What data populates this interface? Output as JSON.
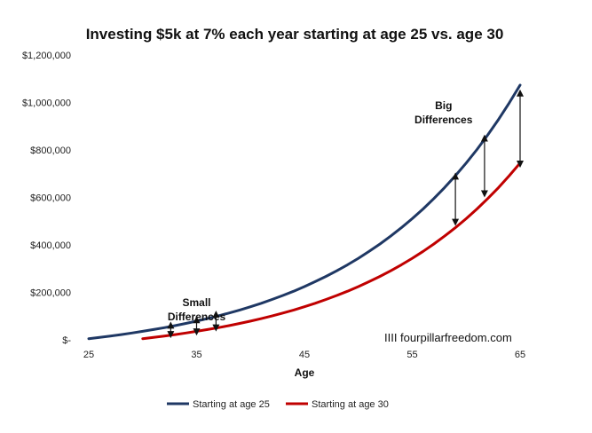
{
  "chart_data": {
    "type": "line",
    "title": "Investing $5k at 7% each year starting at age 25 vs. age 30",
    "xlabel": "Age",
    "ylabel": "",
    "xlim": [
      25,
      65
    ],
    "ylim": [
      0,
      1200000
    ],
    "x_ticks": [
      25,
      35,
      45,
      55,
      65
    ],
    "x_tick_labels": [
      "25",
      "35",
      "45",
      "55",
      "65"
    ],
    "y_ticks": [
      0,
      200000,
      400000,
      600000,
      800000,
      1000000,
      1200000
    ],
    "y_tick_labels": [
      "$-",
      "$200,000",
      "$400,000",
      "$600,000",
      "$800,000",
      "$1,000,000",
      "$1,200,000"
    ],
    "grid": false,
    "legend_position": "bottom",
    "series": [
      {
        "name": "Starting at age 25",
        "color": "#1f3864",
        "x": [
          25,
          26,
          27,
          28,
          29,
          30,
          31,
          32,
          33,
          34,
          35,
          36,
          37,
          38,
          39,
          40,
          41,
          42,
          43,
          44,
          45,
          46,
          47,
          48,
          49,
          50,
          51,
          52,
          53,
          54,
          55,
          56,
          57,
          58,
          59,
          60,
          61,
          62,
          63,
          64,
          65
        ],
        "values": [
          5000,
          10350,
          16075,
          22200,
          28755,
          35770,
          43270,
          51300,
          59900,
          69090,
          78920,
          89450,
          100700,
          112750,
          125650,
          139450,
          154200,
          170000,
          186900,
          205000,
          224350,
          245100,
          267250,
          291000,
          316400,
          343550,
          372600,
          403700,
          437000,
          472600,
          510700,
          551400,
          595000,
          641600,
          691500,
          744900,
          802000,
          863100,
          928500,
          998500,
          1073400
        ]
      },
      {
        "name": "Starting at age 30",
        "color": "#c00000",
        "x": [
          30,
          31,
          32,
          33,
          34,
          35,
          36,
          37,
          38,
          39,
          40,
          41,
          42,
          43,
          44,
          45,
          46,
          47,
          48,
          49,
          50,
          51,
          52,
          53,
          54,
          55,
          56,
          57,
          58,
          59,
          60,
          61,
          62,
          63,
          64,
          65
        ],
        "values": [
          5000,
          10350,
          16075,
          22200,
          28755,
          35770,
          43270,
          51300,
          59900,
          69090,
          78920,
          89450,
          100700,
          112750,
          125650,
          139450,
          154200,
          170000,
          186900,
          205000,
          224350,
          245100,
          267250,
          291000,
          316400,
          343550,
          372600,
          403700,
          437000,
          472600,
          510700,
          551400,
          595000,
          641600,
          691500,
          744900
        ]
      }
    ],
    "annotations": [
      {
        "text_lines": [
          "Small",
          "Differences"
        ],
        "anchor_x": 35,
        "anchor_y": 130000
      },
      {
        "text_lines": [
          "Big",
          "Differences"
        ],
        "anchor_x": 61.7,
        "anchor_y": 960000
      }
    ],
    "difference_arrows": [
      {
        "x": 32.6,
        "from": 22000,
        "to": 62000
      },
      {
        "x": 35,
        "from": 33000,
        "to": 85000
      },
      {
        "x": 36.8,
        "from": 50000,
        "to": 108000
      },
      {
        "x": 59,
        "from": 495000,
        "to": 690000
      },
      {
        "x": 61.7,
        "from": 615000,
        "to": 850000
      },
      {
        "x": 65,
        "from": 740000,
        "to": 1040000
      }
    ],
    "watermark": "IIII fourpillarfreedom.com"
  }
}
